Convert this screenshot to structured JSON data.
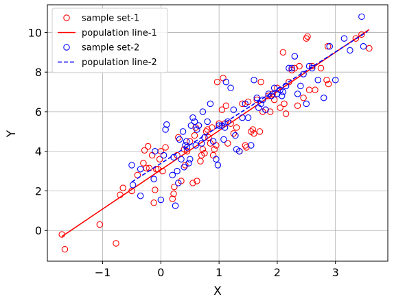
{
  "chart_data": {
    "type": "scatter",
    "title": "",
    "xlabel": "X",
    "ylabel": "Y",
    "xlim": [
      -1.95,
      3.9
    ],
    "ylim": [
      -1.55,
      11.4
    ],
    "xticks": [
      -1,
      0,
      1,
      2,
      3
    ],
    "xtick_labels": [
      "−1",
      "0",
      "1",
      "2",
      "3"
    ],
    "yticks": [
      0,
      2,
      4,
      6,
      8,
      10
    ],
    "ytick_labels": [
      "0",
      "2",
      "4",
      "6",
      "8",
      "10"
    ],
    "grid": true,
    "legend_position": "top-left",
    "series": [
      {
        "name": "sample set-1",
        "kind": "points",
        "marker": "open-circle",
        "color": "#ff0000",
        "points": [
          [
            -1.7,
            -0.2
          ],
          [
            -1.65,
            -0.95
          ],
          [
            -1.05,
            0.3
          ],
          [
            -0.77,
            -0.65
          ],
          [
            -0.7,
            1.8
          ],
          [
            -0.65,
            2.15
          ],
          [
            -0.5,
            2.0
          ],
          [
            -0.4,
            2.8
          ],
          [
            -0.3,
            3.4
          ],
          [
            -0.28,
            4.05
          ],
          [
            -0.25,
            3.15
          ],
          [
            -0.22,
            4.25
          ],
          [
            -0.2,
            3.15
          ],
          [
            -0.15,
            3.8
          ],
          [
            -0.12,
            1.4
          ],
          [
            -0.1,
            2.05
          ],
          [
            -0.08,
            3.1
          ],
          [
            -0.05,
            3.1
          ],
          [
            -0.02,
            3.6
          ],
          [
            0.0,
            4.0
          ],
          [
            0.03,
            3.0
          ],
          [
            0.08,
            4.2
          ],
          [
            0.2,
            1.6
          ],
          [
            0.22,
            1.85
          ],
          [
            0.23,
            2.2
          ],
          [
            0.28,
            3.8
          ],
          [
            0.3,
            4.7
          ],
          [
            0.35,
            2.5
          ],
          [
            0.4,
            4.1
          ],
          [
            0.42,
            3.3
          ],
          [
            0.45,
            4.0
          ],
          [
            0.5,
            4.5
          ],
          [
            0.55,
            2.4
          ],
          [
            0.58,
            4.8
          ],
          [
            0.6,
            5.2
          ],
          [
            0.62,
            2.5
          ],
          [
            0.65,
            5.3
          ],
          [
            0.68,
            3.5
          ],
          [
            0.7,
            3.8
          ],
          [
            0.72,
            4.1
          ],
          [
            0.75,
            3.9
          ],
          [
            0.78,
            5.0
          ],
          [
            0.8,
            5.1
          ],
          [
            0.82,
            4.7
          ],
          [
            0.85,
            4.4
          ],
          [
            0.88,
            5.2
          ],
          [
            0.9,
            3.8
          ],
          [
            0.92,
            4.1
          ],
          [
            0.95,
            4.3
          ],
          [
            0.97,
            7.5
          ],
          [
            1.0,
            5.4
          ],
          [
            1.05,
            6.1
          ],
          [
            1.07,
            7.7
          ],
          [
            1.1,
            5.4
          ],
          [
            1.12,
            6.3
          ],
          [
            1.15,
            4.4
          ],
          [
            1.2,
            5.4
          ],
          [
            1.25,
            4.9
          ],
          [
            1.3,
            5.2
          ],
          [
            1.35,
            4.0
          ],
          [
            1.4,
            6.4
          ],
          [
            1.45,
            4.3
          ],
          [
            1.47,
            4.2
          ],
          [
            1.5,
            6.5
          ],
          [
            1.55,
            5.0
          ],
          [
            1.58,
            5.1
          ],
          [
            1.6,
            4.9
          ],
          [
            1.65,
            6.6
          ],
          [
            1.7,
            5.0
          ],
          [
            1.72,
            7.5
          ],
          [
            1.75,
            6.0
          ],
          [
            1.8,
            6.1
          ],
          [
            1.85,
            6.8
          ],
          [
            1.88,
            6.0
          ],
          [
            1.92,
            6.9
          ],
          [
            1.95,
            6.6
          ],
          [
            2.0,
            7.2
          ],
          [
            2.05,
            6.2
          ],
          [
            2.1,
            9.0
          ],
          [
            2.12,
            6.4
          ],
          [
            2.15,
            5.9
          ],
          [
            2.2,
            7.5
          ],
          [
            2.25,
            8.1
          ],
          [
            2.3,
            8.2
          ],
          [
            2.35,
            6.3
          ],
          [
            2.38,
            8.3
          ],
          [
            2.45,
            6.7
          ],
          [
            2.5,
            9.7
          ],
          [
            2.52,
            9.8
          ],
          [
            2.55,
            7.1
          ],
          [
            2.6,
            8.3
          ],
          [
            2.65,
            7.1
          ],
          [
            2.75,
            8.2
          ],
          [
            2.85,
            7.6
          ],
          [
            2.87,
            9.3
          ],
          [
            2.88,
            7.4
          ],
          [
            3.35,
            9.7
          ],
          [
            3.45,
            9.9
          ],
          [
            3.58,
            9.2
          ]
        ]
      },
      {
        "name": "population line-1",
        "kind": "line",
        "dash": "solid",
        "color": "#ff0000",
        "points": [
          [
            -1.7,
            -0.3
          ],
          [
            3.58,
            10.15
          ]
        ]
      },
      {
        "name": "sample set-2",
        "kind": "points",
        "marker": "open-circle",
        "color": "#0000ff",
        "points": [
          [
            -0.5,
            3.3
          ],
          [
            -0.48,
            2.3
          ],
          [
            -0.35,
            3.1
          ],
          [
            -0.35,
            1.75
          ],
          [
            -0.12,
            2.6
          ],
          [
            -0.1,
            4.0
          ],
          [
            0.0,
            1.55
          ],
          [
            0.05,
            3.8
          ],
          [
            0.08,
            5.1
          ],
          [
            0.1,
            5.35
          ],
          [
            0.2,
            2.8
          ],
          [
            0.22,
            3.7
          ],
          [
            0.25,
            1.25
          ],
          [
            0.28,
            3.0
          ],
          [
            0.3,
            2.4
          ],
          [
            0.32,
            4.6
          ],
          [
            0.35,
            3.6
          ],
          [
            0.38,
            5.0
          ],
          [
            0.4,
            3.2
          ],
          [
            0.42,
            4.3
          ],
          [
            0.44,
            4.5
          ],
          [
            0.45,
            4.2
          ],
          [
            0.48,
            3.4
          ],
          [
            0.5,
            3.6
          ],
          [
            0.52,
            5.3
          ],
          [
            0.55,
            5.7
          ],
          [
            0.58,
            5.5
          ],
          [
            0.6,
            4.3
          ],
          [
            0.62,
            5.1
          ],
          [
            0.65,
            5.3
          ],
          [
            0.7,
            4.4
          ],
          [
            0.72,
            6.0
          ],
          [
            0.75,
            4.7
          ],
          [
            0.8,
            5.5
          ],
          [
            0.85,
            6.4
          ],
          [
            0.9,
            4.5
          ],
          [
            0.95,
            3.6
          ],
          [
            0.98,
            3.3
          ],
          [
            1.0,
            5.3
          ],
          [
            1.05,
            5.3
          ],
          [
            1.08,
            4.6
          ],
          [
            1.1,
            5.2
          ],
          [
            1.12,
            7.5
          ],
          [
            1.15,
            5.5
          ],
          [
            1.2,
            7.2
          ],
          [
            1.25,
            6.1
          ],
          [
            1.28,
            4.8
          ],
          [
            1.3,
            4.1
          ],
          [
            1.35,
            4.0
          ],
          [
            1.4,
            5.7
          ],
          [
            1.45,
            6.4
          ],
          [
            1.5,
            5.7
          ],
          [
            1.55,
            4.3
          ],
          [
            1.6,
            7.6
          ],
          [
            1.65,
            6.7
          ],
          [
            1.68,
            6.2
          ],
          [
            1.72,
            6.4
          ],
          [
            1.75,
            6.6
          ],
          [
            1.8,
            6.1
          ],
          [
            1.85,
            6.9
          ],
          [
            1.9,
            6.8
          ],
          [
            1.95,
            7.2
          ],
          [
            2.0,
            6.9
          ],
          [
            2.05,
            7.1
          ],
          [
            2.08,
            6.8
          ],
          [
            2.1,
            7.0
          ],
          [
            2.15,
            7.3
          ],
          [
            2.2,
            8.2
          ],
          [
            2.25,
            8.2
          ],
          [
            2.3,
            8.8
          ],
          [
            2.35,
            6.9
          ],
          [
            2.4,
            7.3
          ],
          [
            2.45,
            7.9
          ],
          [
            2.5,
            6.4
          ],
          [
            2.55,
            8.3
          ],
          [
            2.6,
            8.2
          ],
          [
            2.7,
            7.6
          ],
          [
            2.8,
            6.7
          ],
          [
            2.9,
            9.3
          ],
          [
            3.0,
            7.6
          ],
          [
            3.15,
            9.7
          ],
          [
            3.25,
            9.1
          ],
          [
            3.45,
            10.8
          ],
          [
            3.48,
            9.3
          ]
        ]
      },
      {
        "name": "population line-2",
        "kind": "line",
        "dash": "dashed",
        "color": "#0000ff",
        "points": [
          [
            -0.5,
            2.45
          ],
          [
            3.55,
            10.05
          ]
        ]
      }
    ]
  }
}
